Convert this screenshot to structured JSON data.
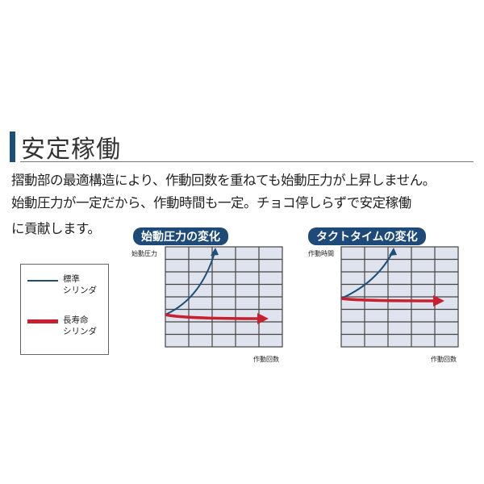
{
  "section": {
    "title": "安定稼働"
  },
  "body_lines": [
    "摺動部の最適構造により、作動回数を重ねても始動圧力が上昇しません。",
    "始動圧力が一定だから、作動時間も一定。チョコ停しらずで安定稼働",
    "に貢献します。"
  ],
  "legend": {
    "items": [
      {
        "line1": "標準",
        "line2": "シリンダ",
        "color": "#1d4f7c"
      },
      {
        "line1": "長寿命",
        "line2": "シリンダ",
        "color": "#c8202e"
      }
    ]
  },
  "charts": [
    {
      "title": "始動圧力の変化",
      "ylabel": "始動圧力",
      "xlabel": "作動回数"
    },
    {
      "title": "タクトタイムの変化",
      "ylabel": "作動時間",
      "xlabel": "作動回数"
    }
  ],
  "colors": {
    "accent": "#1d4a78",
    "grid_fill": "#dfe3ee",
    "standard": "#1d4f7c",
    "long_life": "#c8202e"
  }
}
